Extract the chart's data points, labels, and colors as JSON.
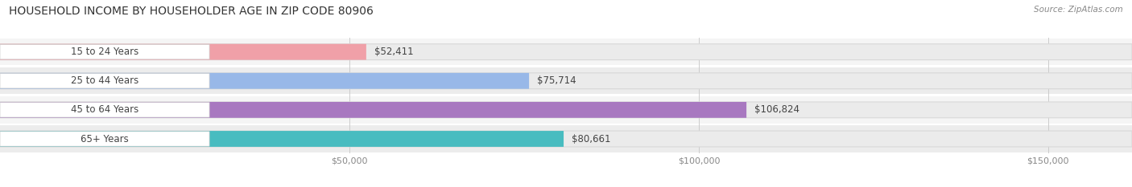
{
  "title": "HOUSEHOLD INCOME BY HOUSEHOLDER AGE IN ZIP CODE 80906",
  "source": "Source: ZipAtlas.com",
  "categories": [
    "15 to 24 Years",
    "25 to 44 Years",
    "45 to 64 Years",
    "65+ Years"
  ],
  "values": [
    52411,
    75714,
    106824,
    80661
  ],
  "bar_colors": [
    "#f0a0a8",
    "#98b8e8",
    "#a878c0",
    "#48bcc0"
  ],
  "value_labels": [
    "$52,411",
    "$75,714",
    "$106,824",
    "$80,661"
  ],
  "x_ticks": [
    50000,
    100000,
    150000
  ],
  "x_tick_labels": [
    "$50,000",
    "$100,000",
    "$150,000"
  ],
  "xlim_max": 162000,
  "title_fontsize": 10,
  "source_fontsize": 7.5,
  "label_fontsize": 8.5,
  "value_fontsize": 8.5,
  "tick_fontsize": 8,
  "bar_bg_color": "#ebebeb",
  "bar_bg_edge_color": "#d8d8d8",
  "row_bg_even": "#f5f5f5",
  "row_bg_odd": "#ececec",
  "white_label_box_color": "#ffffff",
  "grid_color": "#cccccc",
  "title_color": "#333333",
  "source_color": "#888888",
  "label_color": "#444444",
  "tick_color": "#888888",
  "background_color": "#ffffff"
}
